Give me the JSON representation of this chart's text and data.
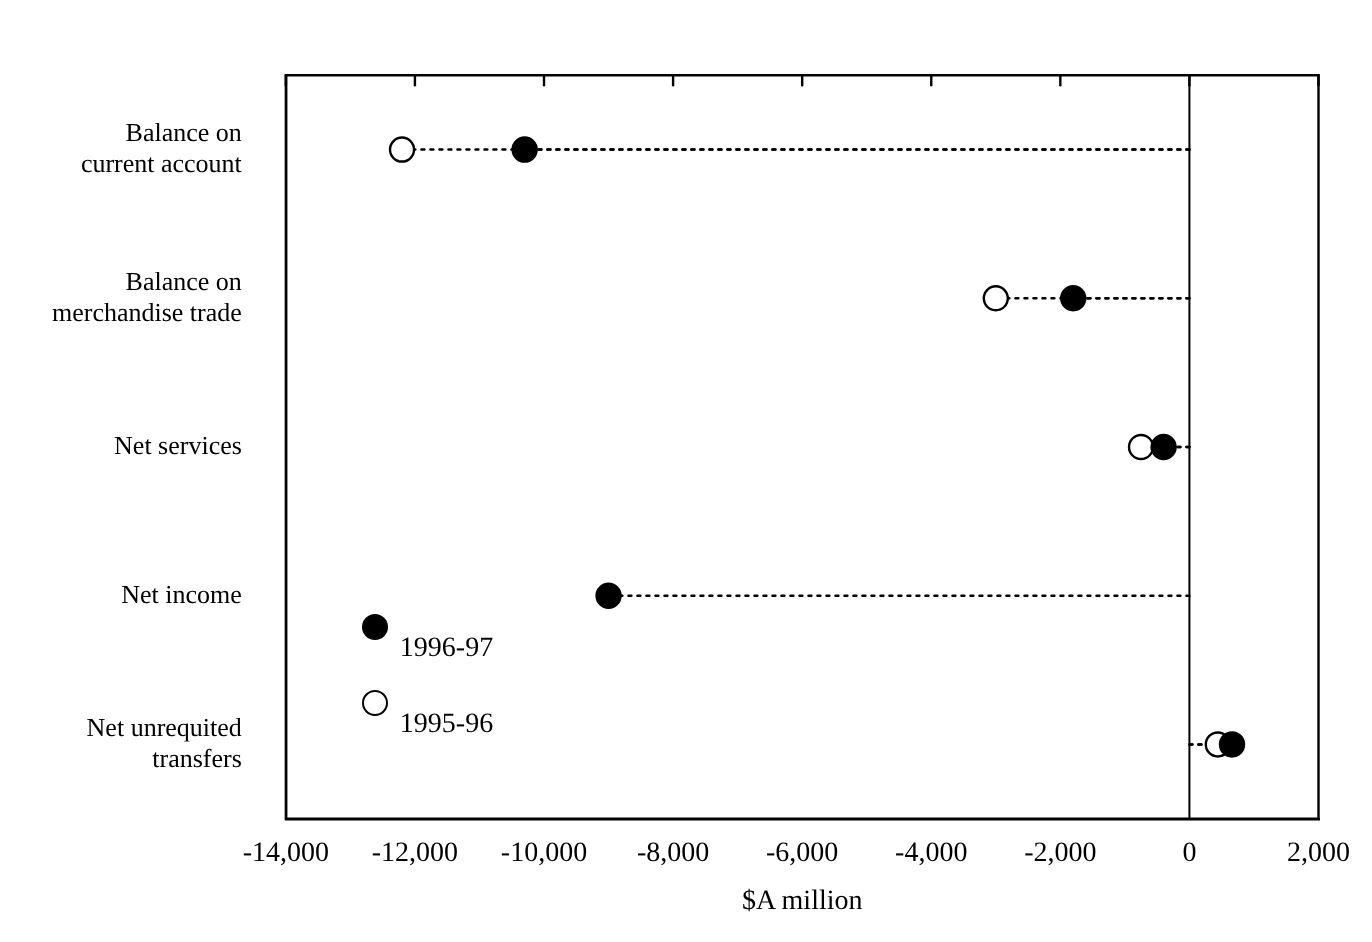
{
  "chart_data": {
    "type": "lollipop",
    "orientation": "horizontal",
    "xlabel": "$A million",
    "categories": [
      "Balance on current account",
      "Balance on merchandise trade",
      "Net services",
      "Net income",
      "Net unrequited transfers"
    ],
    "series": [
      {
        "name": "1996-97",
        "color": "#000000",
        "values": [
          -10300,
          -1800,
          -400,
          -9000,
          660
        ]
      },
      {
        "name": "1995-96",
        "color": "#ffffff",
        "values": [
          -12200,
          -3000,
          -750,
          null,
          440
        ]
      }
    ],
    "xlim": [
      -14000,
      2000
    ],
    "xticks": [
      {
        "value": -14000,
        "label": "-14,000"
      },
      {
        "value": -12000,
        "label": "-12,000"
      },
      {
        "value": -10000,
        "label": "-10,000"
      },
      {
        "value": -8000,
        "label": "-8,000"
      },
      {
        "value": -6000,
        "label": "-6,000"
      },
      {
        "value": -4000,
        "label": "-4,000"
      },
      {
        "value": -2000,
        "label": "-2,000"
      },
      0,
      {
        "value": 2000,
        "label": "2,000"
      }
    ],
    "ref_lines": [
      {
        "axis": "x",
        "value": 0
      }
    ],
    "grid": false,
    "legend": "bottom left",
    "marker": "circle",
    "line_style": "dotted"
  }
}
